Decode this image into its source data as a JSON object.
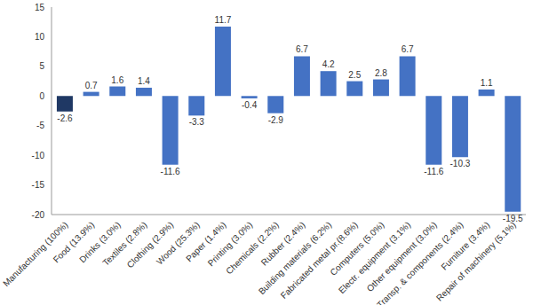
{
  "chart_data": {
    "type": "bar",
    "categories": [
      "Manufacturing (100%)",
      "Food (13.9%)",
      "Drinks (3.0%)",
      "Textiles (2.8%)",
      "Clothing (2.9%)",
      "Wood (25.3%)",
      "Paper (1.4%)",
      "Printing (3.0%)",
      "Chemicals (2.2%)",
      "Rubber (2.4%)",
      "Building materials (6.2%)",
      "Fabricated metal pr.(8.6%)",
      "Computers (5.0%)",
      "Electr. equipment (3.1%)",
      "Other equipment (3.0%)",
      "Transp. & components (2.4%)",
      "Furniture (3.4%)",
      "Repair of machinery (5.1%)"
    ],
    "values": [
      -2.6,
      0.7,
      1.6,
      1.4,
      -11.6,
      -3.3,
      11.7,
      -0.4,
      -2.9,
      6.7,
      4.2,
      2.5,
      2.8,
      6.7,
      -11.6,
      -10.3,
      1.1,
      -19.5
    ],
    "colors": [
      "#1f3864",
      "#4472c4",
      "#4472c4",
      "#4472c4",
      "#4472c4",
      "#4472c4",
      "#4472c4",
      "#4472c4",
      "#4472c4",
      "#4472c4",
      "#4472c4",
      "#4472c4",
      "#4472c4",
      "#4472c4",
      "#4472c4",
      "#4472c4",
      "#4472c4",
      "#4472c4"
    ],
    "ylim": [
      -20,
      15
    ],
    "yticks": [
      -20,
      -15,
      -10,
      -5,
      0,
      5,
      10,
      15
    ],
    "grid": false,
    "data_labels": true
  }
}
